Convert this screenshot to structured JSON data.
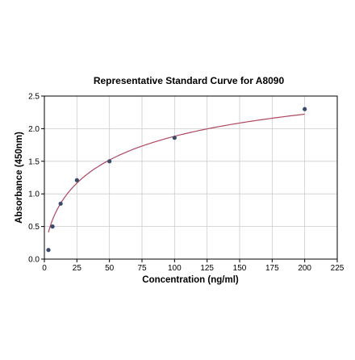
{
  "chart_data": {
    "type": "scatter",
    "title": "Representative Standard Curve for A8090",
    "xlabel": "Concentration (ng/ml)",
    "ylabel": "Absorbance (450nm)",
    "xlim": [
      0,
      225
    ],
    "ylim": [
      0,
      2.5
    ],
    "x_ticks": [
      "0",
      "25",
      "50",
      "75",
      "100",
      "125",
      "150",
      "175",
      "200",
      "225"
    ],
    "y_ticks": [
      "0.0",
      "0.5",
      "1.0",
      "1.5",
      "2.0",
      "2.5"
    ],
    "grid": true,
    "points": {
      "x": [
        3.125,
        6.25,
        12.5,
        25,
        50,
        100,
        200
      ],
      "y": [
        0.14,
        0.5,
        0.85,
        1.21,
        1.5,
        1.86,
        2.3
      ]
    },
    "fit_curve": {
      "x_range": [
        3.125,
        200
      ],
      "model": "4PL",
      "params": {
        "a": 0,
        "b": 0.65,
        "c": 61.1,
        "d": 3.25
      }
    },
    "colors": {
      "point": "#3a4a6b",
      "curve": "#b0475f",
      "grid": "#cccccc",
      "axis": "#000000"
    }
  }
}
